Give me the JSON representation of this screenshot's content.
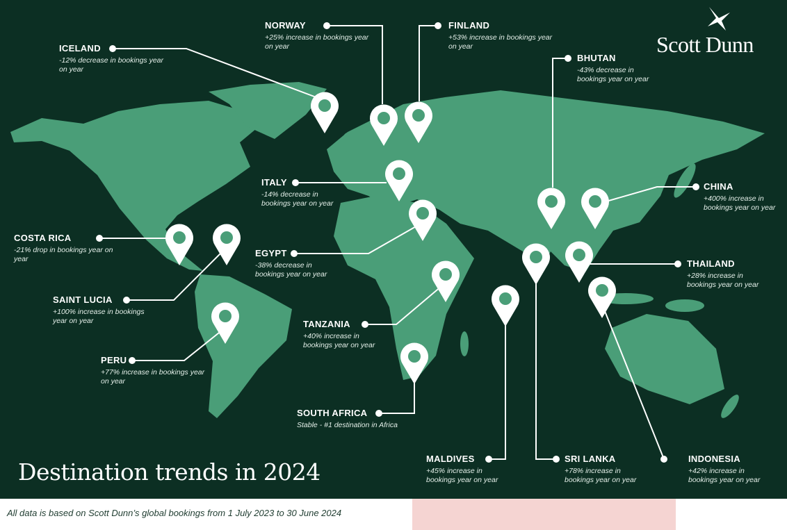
{
  "brand": "Scott Dunn",
  "title": "Destination trends in 2024",
  "footer": "All data is based on Scott Dunn’s global bookings from 1 July 2023 to 30 June 2024",
  "colors": {
    "background": "#0c2f23",
    "land": "#4a9e78",
    "pin": "#ffffff"
  },
  "destinations": [
    {
      "name": "ICELAND",
      "desc": "-12% decrease in bookings year on year"
    },
    {
      "name": "NORWAY",
      "desc": "+25% increase in bookings year on year"
    },
    {
      "name": "FINLAND",
      "desc": "+53% increase in bookings year on year"
    },
    {
      "name": "BHUTAN",
      "desc": "-43% decrease in bookings year on year"
    },
    {
      "name": "ITALY",
      "desc": "-14% decrease in bookings year on year"
    },
    {
      "name": "CHINA",
      "desc": "+400% increase in bookings year on year"
    },
    {
      "name": "COSTA RICA",
      "desc": "-21% drop in bookings year on year"
    },
    {
      "name": "EGYPT",
      "desc": "-38% decrease in bookings year on year"
    },
    {
      "name": "THAILAND",
      "desc": "+28% increase in bookings year on year"
    },
    {
      "name": "SAINT LUCIA",
      "desc": "+100% increase in bookings year on year"
    },
    {
      "name": "TANZANIA",
      "desc": "+40% increase in bookings year on year"
    },
    {
      "name": "PERU",
      "desc": "+77% increase in bookings year on year"
    },
    {
      "name": "SOUTH AFRICA",
      "desc": "Stable - #1 destination in Africa"
    },
    {
      "name": "MALDIVES",
      "desc": "+45% increase in bookings year on year"
    },
    {
      "name": "SRI LANKA",
      "desc": "+78% increase in bookings year on year"
    },
    {
      "name": "INDONESIA",
      "desc": "+42% increase in bookings year on year"
    }
  ]
}
